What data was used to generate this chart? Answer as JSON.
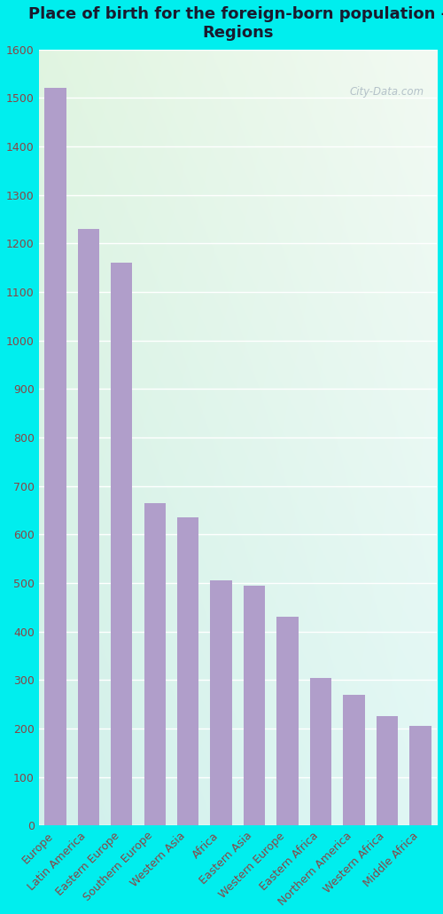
{
  "title": "Place of birth for the foreign-born population -\nRegions",
  "categories": [
    "Europe",
    "Latin America",
    "Eastern Europe",
    "Southern Europe",
    "Western Asia",
    "Africa",
    "Eastern Asia",
    "Western Europe",
    "Eastern Africa",
    "Northern America",
    "Western Africa",
    "Middle Africa"
  ],
  "values": [
    1520,
    1230,
    1160,
    665,
    635,
    505,
    495,
    430,
    305,
    270,
    225,
    205
  ],
  "bar_color": "#b09eca",
  "title_color": "#1a1a2e",
  "tick_color": "#8b4444",
  "ylim": [
    0,
    1600
  ],
  "yticks": [
    0,
    100,
    200,
    300,
    400,
    500,
    600,
    700,
    800,
    900,
    1000,
    1100,
    1200,
    1300,
    1400,
    1500,
    1600
  ],
  "title_fontsize": 13,
  "tick_fontsize": 9,
  "label_fontsize": 9,
  "watermark": "City-Data.com",
  "outer_bg": "#00eeee",
  "plot_bg_topleft": "#d8eeda",
  "plot_bg_topright": "#f0f8f0",
  "plot_bg_bottomleft": "#c8eef0",
  "plot_bg_bottomright": "#e0f8f8"
}
